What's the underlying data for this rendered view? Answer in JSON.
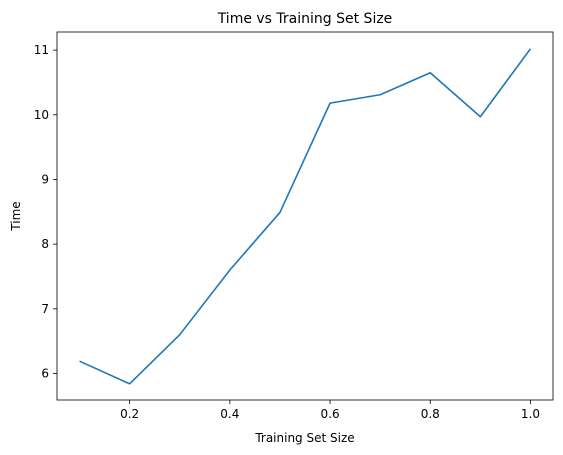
{
  "chart_data": {
    "type": "line",
    "title": "Time vs Training Set Size",
    "xlabel": "Training Set Size",
    "ylabel": "Time",
    "xlim": [
      0.055,
      1.045
    ],
    "ylim": [
      5.59,
      11.28
    ],
    "x_ticks": [
      0.2,
      0.4,
      0.6,
      0.8,
      1.0
    ],
    "x_tick_labels": [
      "0.2",
      "0.4",
      "0.6",
      "0.8",
      "1.0"
    ],
    "y_ticks": [
      6,
      7,
      8,
      9,
      10,
      11
    ],
    "y_tick_labels": [
      "6",
      "7",
      "8",
      "9",
      "10",
      "11"
    ],
    "grid": false,
    "series": [
      {
        "color": "#1f77b4",
        "x": [
          0.1,
          0.2,
          0.3,
          0.4,
          0.5,
          0.6,
          0.7,
          0.8,
          0.9,
          1.0
        ],
        "y": [
          6.19,
          5.84,
          6.6,
          7.6,
          8.49,
          10.18,
          10.31,
          10.65,
          9.97,
          11.02
        ]
      }
    ]
  }
}
